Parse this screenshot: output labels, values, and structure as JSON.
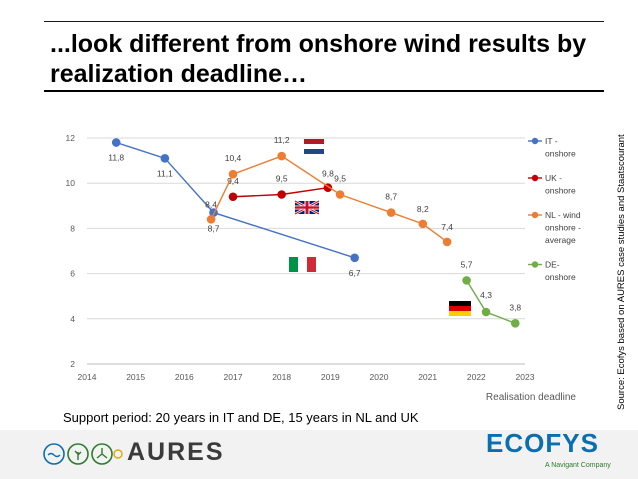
{
  "title": "...look different from onshore wind results by realization deadline…",
  "source": "Source: Ecofys based on AURES case studies and Staatscourant",
  "support_note": "Support period: 20 years in IT and DE, 15 years in NL and UK",
  "footer": {
    "aures_logo": "AURES",
    "ecofys_logo": "ECOFYS",
    "ecofys_sub": "A Navigant Company"
  },
  "chart_data": {
    "type": "line",
    "xlabel": "Realisation deadline",
    "ylabel": "",
    "xlim": [
      2014,
      2023
    ],
    "ylim": [
      2,
      12
    ],
    "xticks": [
      "2014",
      "2015",
      "2016",
      "2017",
      "2018",
      "2019",
      "2020",
      "2021",
      "2022",
      "2023"
    ],
    "yticks": [
      "2",
      "4",
      "6",
      "8",
      "10",
      "12"
    ],
    "grid": "horizontal",
    "legend_position": "right",
    "series": [
      {
        "name": "IT - onshore",
        "legend_lines": [
          "IT -",
          "onshore"
        ],
        "color": "#4472c4",
        "points": [
          {
            "x": 2014.6,
            "y": 11.8,
            "label": "11,8"
          },
          {
            "x": 2015.6,
            "y": 11.1,
            "label": "11,1"
          },
          {
            "x": 2016.6,
            "y": 8.7,
            "label": "8,7"
          },
          {
            "x": 2019.5,
            "y": 6.7,
            "label": "6,7"
          }
        ]
      },
      {
        "name": "UK - onshore",
        "legend_lines": [
          "UK -",
          "onshore"
        ],
        "color": "#c00000",
        "points": [
          {
            "x": 2017.0,
            "y": 9.4,
            "label": "9,4"
          },
          {
            "x": 2018.0,
            "y": 9.5,
            "label": "9,5"
          },
          {
            "x": 2018.95,
            "y": 9.8,
            "label": "9,8"
          }
        ]
      },
      {
        "name": "NL - wind onshore - average",
        "legend_lines": [
          "NL - wind",
          "onshore -",
          "average"
        ],
        "color": "#ed7d31",
        "points": [
          {
            "x": 2016.55,
            "y": 8.4,
            "label": "8,4"
          },
          {
            "x": 2017.0,
            "y": 10.4,
            "label": "10,4"
          },
          {
            "x": 2018.0,
            "y": 11.2,
            "label": "11,2"
          },
          {
            "x": 2019.2,
            "y": 9.5,
            "label": "9,5"
          },
          {
            "x": 2020.25,
            "y": 8.7,
            "label": "8,7"
          },
          {
            "x": 2020.9,
            "y": 8.2,
            "label": "8,2"
          },
          {
            "x": 2021.4,
            "y": 7.4,
            "label": "7,4"
          }
        ]
      },
      {
        "name": "DE- onshore",
        "legend_lines": [
          "DE-",
          "onshore"
        ],
        "color": "#70ad47",
        "points": [
          {
            "x": 2021.8,
            "y": 5.7,
            "label": "5,7"
          },
          {
            "x": 2022.2,
            "y": 4.3,
            "label": "4,3"
          },
          {
            "x": 2022.8,
            "y": 3.8,
            "label": "3,8"
          }
        ]
      }
    ],
    "flags": [
      {
        "name": "netherlands-flag-icon",
        "country": "NL"
      },
      {
        "name": "uk-flag-icon",
        "country": "UK"
      },
      {
        "name": "italy-flag-icon",
        "country": "IT"
      },
      {
        "name": "germany-flag-icon",
        "country": "DE"
      }
    ]
  }
}
